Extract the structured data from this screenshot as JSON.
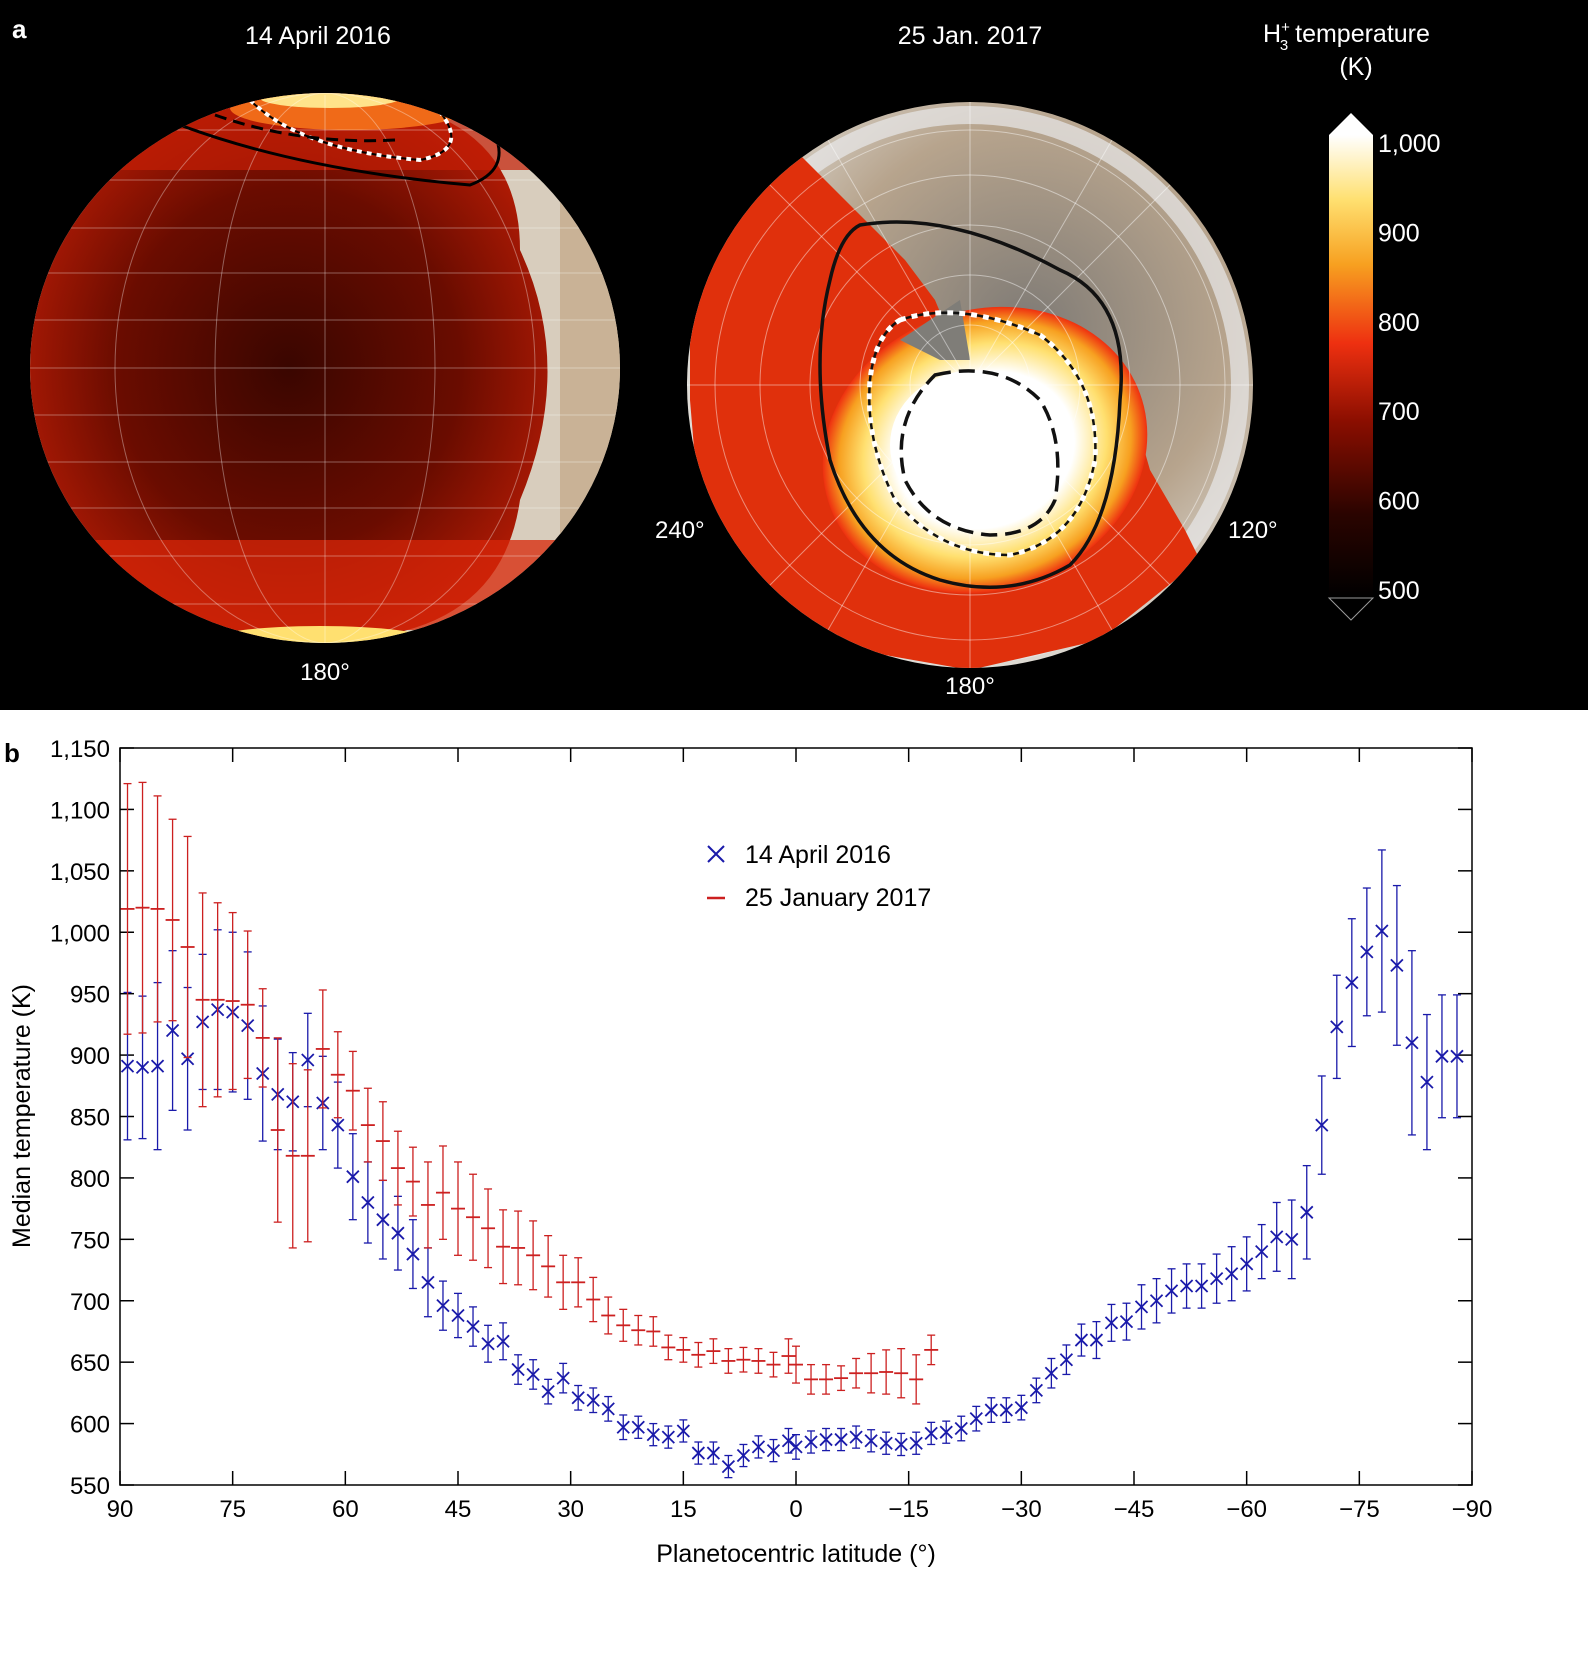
{
  "panel_a": {
    "label": "a",
    "left_title": "14 April 2016",
    "right_title": "25 Jan. 2017",
    "left_bottom_label": "180°",
    "right_bottom_label": "180°",
    "right_left_label": "240°",
    "right_right_label": "120°",
    "colorbar": {
      "title_prefix": "H",
      "title_sup": "+",
      "title_sub": "3",
      "title_suffix": " temperature",
      "unit": "(K)",
      "ticks": [
        "1,000",
        "900",
        "800",
        "700",
        "600",
        "500"
      ],
      "range": [
        500,
        1000
      ],
      "colors": [
        "#ffffff",
        "#ffe070",
        "#f7a020",
        "#ee3010",
        "#b01000",
        "#3a0500",
        "#000000"
      ]
    }
  },
  "panel_b": {
    "label": "b"
  },
  "chart_data": {
    "type": "scatter",
    "xlabel": "Planetocentric latitude (°)",
    "ylabel": "Median temperature (K)",
    "xlim": [
      90,
      -90
    ],
    "ylim": [
      550,
      1150
    ],
    "xticks": [
      90,
      75,
      60,
      45,
      30,
      15,
      0,
      -15,
      -30,
      -45,
      -60,
      -75,
      -90
    ],
    "xtick_labels": [
      "90",
      "75",
      "60",
      "45",
      "30",
      "15",
      "0",
      "−15",
      "−30",
      "−45",
      "−60",
      "−75",
      "−90"
    ],
    "yticks": [
      550,
      600,
      650,
      700,
      750,
      800,
      850,
      900,
      950,
      1000,
      1050,
      1100,
      1150
    ],
    "ytick_labels": [
      "550",
      "600",
      "650",
      "700",
      "750",
      "800",
      "850",
      "900",
      "950",
      "1,000",
      "1,050",
      "1,100",
      "1,150"
    ],
    "legend_position": "top-center",
    "series": [
      {
        "name": "14 April 2016",
        "color": "#1a1aaa",
        "marker": "x",
        "points": [
          [
            89,
            891,
            60
          ],
          [
            87,
            890,
            58
          ],
          [
            85,
            891,
            68
          ],
          [
            83,
            920,
            65
          ],
          [
            81,
            897,
            58
          ],
          [
            79,
            927,
            55
          ],
          [
            77,
            937,
            65
          ],
          [
            75,
            935,
            65
          ],
          [
            73,
            924,
            60
          ],
          [
            71,
            885,
            55
          ],
          [
            69,
            868,
            45
          ],
          [
            67,
            862,
            40
          ],
          [
            65,
            896,
            38
          ],
          [
            63,
            861,
            38
          ],
          [
            61,
            843,
            35
          ],
          [
            59,
            801,
            35
          ],
          [
            57,
            780,
            33
          ],
          [
            55,
            766,
            32
          ],
          [
            53,
            755,
            30
          ],
          [
            51,
            738,
            28
          ],
          [
            49,
            715,
            28
          ],
          [
            47,
            696,
            20
          ],
          [
            45,
            688,
            18
          ],
          [
            43,
            679,
            16
          ],
          [
            41,
            665,
            15
          ],
          [
            39,
            667,
            15
          ],
          [
            37,
            644,
            12
          ],
          [
            35,
            640,
            12
          ],
          [
            33,
            626,
            10
          ],
          [
            31,
            637,
            12
          ],
          [
            29,
            621,
            10
          ],
          [
            27,
            619,
            10
          ],
          [
            25,
            612,
            10
          ],
          [
            23,
            597,
            10
          ],
          [
            21,
            597,
            9
          ],
          [
            19,
            591,
            9
          ],
          [
            17,
            589,
            9
          ],
          [
            15,
            594,
            9
          ],
          [
            13,
            576,
            9
          ],
          [
            11,
            576,
            9
          ],
          [
            9,
            565,
            9
          ],
          [
            7,
            574,
            9
          ],
          [
            5,
            581,
            9
          ],
          [
            3,
            578,
            9
          ],
          [
            1,
            586,
            10
          ],
          [
            0,
            581,
            10
          ],
          [
            -2,
            585,
            9
          ],
          [
            -4,
            587,
            9
          ],
          [
            -6,
            587,
            9
          ],
          [
            -8,
            589,
            9
          ],
          [
            -10,
            586,
            9
          ],
          [
            -12,
            584,
            9
          ],
          [
            -14,
            583,
            9
          ],
          [
            -16,
            584,
            9
          ],
          [
            -18,
            592,
            9
          ],
          [
            -20,
            593,
            9
          ],
          [
            -22,
            596,
            10
          ],
          [
            -24,
            604,
            10
          ],
          [
            -26,
            611,
            10
          ],
          [
            -28,
            611,
            10
          ],
          [
            -30,
            613,
            10
          ],
          [
            -32,
            627,
            10
          ],
          [
            -34,
            641,
            12
          ],
          [
            -36,
            652,
            12
          ],
          [
            -38,
            668,
            13
          ],
          [
            -40,
            668,
            15
          ],
          [
            -42,
            682,
            15
          ],
          [
            -44,
            683,
            15
          ],
          [
            -46,
            695,
            18
          ],
          [
            -48,
            700,
            18
          ],
          [
            -50,
            708,
            18
          ],
          [
            -52,
            712,
            18
          ],
          [
            -54,
            712,
            18
          ],
          [
            -56,
            718,
            20
          ],
          [
            -58,
            722,
            22
          ],
          [
            -60,
            730,
            22
          ],
          [
            -62,
            740,
            22
          ],
          [
            -64,
            752,
            28
          ],
          [
            -66,
            750,
            32
          ],
          [
            -68,
            772,
            38
          ],
          [
            -70,
            843,
            40
          ],
          [
            -72,
            923,
            42
          ],
          [
            -74,
            959,
            52
          ],
          [
            -76,
            984,
            52
          ],
          [
            -78,
            1001,
            66
          ],
          [
            -80,
            973,
            65
          ],
          [
            -82,
            910,
            75
          ],
          [
            -84,
            878,
            55
          ],
          [
            -86,
            899,
            50
          ],
          [
            -88,
            899,
            50
          ]
        ]
      },
      {
        "name": "25 January 2017",
        "color": "#cc2020",
        "marker": "+",
        "points": [
          [
            89,
            1019,
            102
          ],
          [
            87,
            1020,
            102
          ],
          [
            85,
            1019,
            92
          ],
          [
            83,
            1010,
            82
          ],
          [
            81,
            988,
            90
          ],
          [
            79,
            945,
            87
          ],
          [
            77,
            945,
            79
          ],
          [
            75,
            944,
            72
          ],
          [
            73,
            941,
            60
          ],
          [
            71,
            914,
            40
          ],
          [
            69,
            839,
            75
          ],
          [
            67,
            818,
            75
          ],
          [
            65,
            818,
            70
          ],
          [
            63,
            905,
            48
          ],
          [
            61,
            884,
            35
          ],
          [
            59,
            871,
            32
          ],
          [
            57,
            843,
            30
          ],
          [
            55,
            830,
            32
          ],
          [
            53,
            808,
            30
          ],
          [
            51,
            797,
            28
          ],
          [
            49,
            778,
            35
          ],
          [
            47,
            788,
            38
          ],
          [
            45,
            775,
            38
          ],
          [
            43,
            768,
            35
          ],
          [
            41,
            759,
            32
          ],
          [
            39,
            744,
            30
          ],
          [
            37,
            743,
            30
          ],
          [
            35,
            737,
            28
          ],
          [
            33,
            728,
            25
          ],
          [
            31,
            715,
            22
          ],
          [
            29,
            715,
            20
          ],
          [
            27,
            701,
            18
          ],
          [
            25,
            688,
            15
          ],
          [
            23,
            680,
            13
          ],
          [
            21,
            676,
            12
          ],
          [
            19,
            675,
            12
          ],
          [
            17,
            662,
            10
          ],
          [
            15,
            660,
            10
          ],
          [
            13,
            656,
            10
          ],
          [
            11,
            659,
            10
          ],
          [
            9,
            651,
            10
          ],
          [
            7,
            652,
            10
          ],
          [
            5,
            651,
            10
          ],
          [
            3,
            648,
            10
          ],
          [
            1,
            655,
            14
          ],
          [
            0,
            648,
            15
          ],
          [
            -2,
            636,
            12
          ],
          [
            -4,
            636,
            12
          ],
          [
            -6,
            637,
            10
          ],
          [
            -8,
            641,
            12
          ],
          [
            -10,
            641,
            16
          ],
          [
            -12,
            642,
            18
          ],
          [
            -14,
            641,
            20
          ],
          [
            -16,
            636,
            20
          ],
          [
            -18,
            660,
            12
          ]
        ]
      }
    ]
  }
}
